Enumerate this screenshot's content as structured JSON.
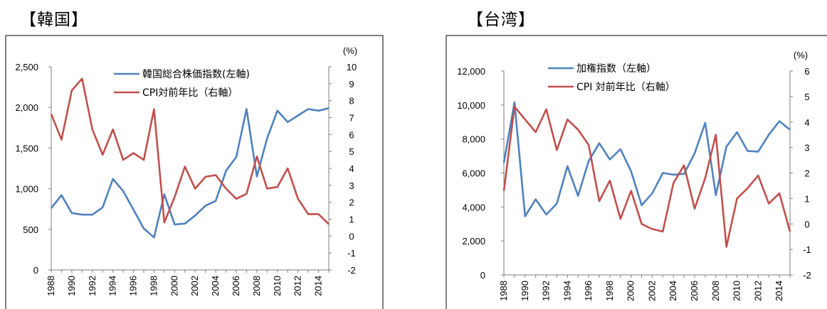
{
  "panels": {
    "korea_title": "【韓国】",
    "taiwan_title": "【台湾】"
  },
  "colors": {
    "blue": "#4f81bd",
    "red": "#c0504d",
    "axis": "#7f7f7f"
  },
  "chart_data": [
    {
      "type": "line",
      "title": "【韓国】",
      "x": [
        1988,
        1989,
        1990,
        1991,
        1992,
        1993,
        1994,
        1995,
        1996,
        1997,
        1998,
        1999,
        2000,
        2001,
        2002,
        2003,
        2004,
        2005,
        2006,
        2007,
        2008,
        2009,
        2010,
        2011,
        2012,
        2013,
        2014,
        2015
      ],
      "x_tick_labels": [
        "1988",
        "1990",
        "1992",
        "1994",
        "1996",
        "1998",
        "2000",
        "2002",
        "2004",
        "2006",
        "2008",
        "2010",
        "2012",
        "2014"
      ],
      "left_axis": {
        "ylim": [
          0,
          2500
        ],
        "ticks": [
          "0",
          "500",
          "1,000",
          "1,500",
          "2,000",
          "2,500"
        ]
      },
      "right_axis": {
        "unit": "(%)",
        "ylim": [
          -2,
          10
        ],
        "ticks": [
          "-2",
          "-1",
          "0",
          "1",
          "2",
          "3",
          "4",
          "5",
          "6",
          "7",
          "8",
          "9",
          "10"
        ]
      },
      "series": [
        {
          "name": "韓国総合株価指数(左軸)",
          "axis": "left",
          "values": [
            760,
            920,
            700,
            680,
            680,
            770,
            1120,
            970,
            740,
            510,
            400,
            930,
            560,
            570,
            670,
            790,
            850,
            1220,
            1390,
            1980,
            1150,
            1620,
            1960,
            1820,
            1900,
            1980,
            1960,
            1990
          ]
        },
        {
          "name": "CPI対前年比（右軸）",
          "axis": "right",
          "values": [
            7.2,
            5.7,
            8.6,
            9.3,
            6.3,
            4.8,
            6.3,
            4.5,
            4.9,
            4.5,
            7.5,
            0.8,
            2.3,
            4.1,
            2.8,
            3.5,
            3.6,
            2.8,
            2.2,
            2.5,
            4.7,
            2.8,
            2.9,
            4.0,
            2.2,
            1.3,
            1.3,
            0.7
          ]
        }
      ]
    },
    {
      "type": "line",
      "title": "【台湾】",
      "x": [
        1988,
        1989,
        1990,
        1991,
        1992,
        1993,
        1994,
        1995,
        1996,
        1997,
        1998,
        1999,
        2000,
        2001,
        2002,
        2003,
        2004,
        2005,
        2006,
        2007,
        2008,
        2009,
        2010,
        2011,
        2012,
        2013,
        2014,
        2015
      ],
      "x_tick_labels": [
        "1988",
        "1990",
        "1992",
        "1994",
        "1996",
        "1998",
        "2000",
        "2002",
        "2004",
        "2006",
        "2008",
        "2010",
        "2012",
        "2014"
      ],
      "left_axis": {
        "ylim": [
          0,
          12000
        ],
        "ticks": [
          "0",
          "2,000",
          "4,000",
          "6,000",
          "8,000",
          "10,000",
          "12,000"
        ]
      },
      "right_axis": {
        "unit": "(%)",
        "ylim": [
          -2,
          6
        ],
        "ticks": [
          "-2",
          "-1",
          "0",
          "1",
          "2",
          "3",
          "4",
          "5",
          "6"
        ]
      },
      "series": [
        {
          "name": "加権指数（左軸）",
          "axis": "left",
          "values": [
            6600,
            10150,
            3450,
            4450,
            3550,
            4200,
            6400,
            4650,
            6700,
            7750,
            6800,
            7400,
            6100,
            4100,
            4800,
            6000,
            5900,
            5950,
            7150,
            8950,
            4700,
            7550,
            8400,
            7300,
            7250,
            8250,
            9050,
            8550
          ]
        },
        {
          "name": "CPI 対前年比（右軸）",
          "axis": "right",
          "values": [
            1.3,
            4.6,
            4.1,
            3.6,
            4.5,
            2.9,
            4.1,
            3.7,
            3.1,
            0.9,
            1.7,
            0.2,
            1.3,
            0.0,
            -0.2,
            -0.3,
            1.6,
            2.3,
            0.6,
            1.8,
            3.5,
            -0.9,
            1.0,
            1.4,
            1.9,
            0.8,
            1.2,
            -0.3
          ]
        }
      ]
    }
  ]
}
